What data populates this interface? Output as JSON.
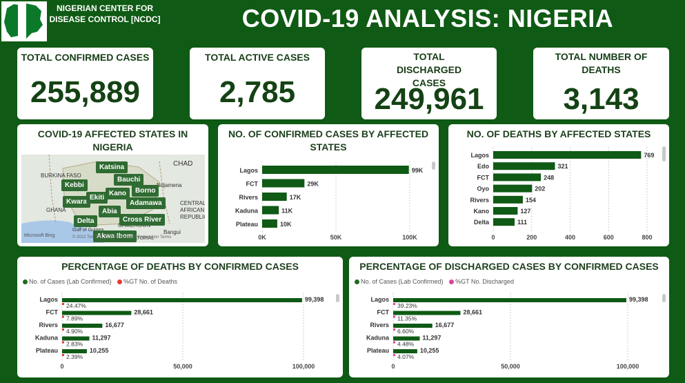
{
  "header": {
    "org_name": "NIGERIAN CENTER FOR DISEASE CONTROL [NCDC]",
    "title": "COVID-19 ANALYSIS: NIGERIA",
    "flag_colors": [
      "#008751",
      "#ffffff",
      "#008751"
    ]
  },
  "kpis": [
    {
      "label": "TOTAL CONFIRMED CASES",
      "value": "255,889"
    },
    {
      "label": "TOTAL ACTIVE CASES",
      "value": "2,785"
    },
    {
      "label": "TOTAL DISCHARGED CASES",
      "value": "249,961"
    },
    {
      "label": "TOTAL NUMBER OF DEATHS",
      "value": "3,143"
    }
  ],
  "map": {
    "title": "COVID-19 AFFECTED STATES IN NIGERIA",
    "pins": [
      "Katsina",
      "Bauchi",
      "Kebbi",
      "Borno",
      "Kano",
      "Kwara",
      "Ekiti",
      "Adamawa",
      "Abia",
      "Delta",
      "Cross River",
      "Akwa Ibom"
    ],
    "labels": [
      "BURKINA FASO",
      "CHAD",
      "GHANA",
      "CAMEROON",
      "CENTRAL AFRICAN REPUBLIC",
      "Bangui",
      "Gulf of Guinea",
      "Ndjamena",
      "EQUATORIAL"
    ],
    "attribution": "© 2022 TomTom, © 2022 Microsoft Corporation Terms",
    "brand": "Microsoft Bing"
  },
  "chart_data": [
    {
      "type": "bar",
      "title": "NO. OF CONFIRMED CASES BY AFFECTED STATES",
      "categories": [
        "Lagos",
        "FCT",
        "Rivers",
        "Kaduna",
        "Plateau"
      ],
      "values": [
        99398,
        28661,
        16677,
        11297,
        10255
      ],
      "data_labels": [
        "99K",
        "29K",
        "17K",
        "11K",
        "10K"
      ],
      "ticks": [
        "0K",
        "50K",
        "100K"
      ],
      "xlim": [
        0,
        100000
      ],
      "color": "#0f5a14"
    },
    {
      "type": "bar",
      "title": "NO. OF DEATHS BY AFFECTED STATES",
      "categories": [
        "Lagos",
        "Edo",
        "FCT",
        "Oyo",
        "Rivers",
        "Kano",
        "Delta"
      ],
      "values": [
        769,
        321,
        248,
        202,
        154,
        127,
        111
      ],
      "data_labels": [
        "769",
        "321",
        "248",
        "202",
        "154",
        "127",
        "111"
      ],
      "ticks": [
        "0",
        "200",
        "400",
        "600",
        "800"
      ],
      "xlim": [
        0,
        800
      ],
      "color": "#0f5a14"
    },
    {
      "type": "bar",
      "title": "PERCENTAGE OF DEATHS BY CONFIRMED CASES",
      "legend": [
        "No. of Cases (Lab Confirmed)",
        "%GT No. of Deaths"
      ],
      "legend_colors": [
        "#1f6b1f",
        "#e53935"
      ],
      "categories": [
        "Lagos",
        "FCT",
        "Rivers",
        "Kaduna",
        "Plateau"
      ],
      "values": [
        99398,
        28661,
        16677,
        11297,
        10255
      ],
      "data_labels": [
        "99,398",
        "28,661",
        "16,677",
        "11,297",
        "10,255"
      ],
      "pct_labels": [
        "24.47%",
        "7.89%",
        "4.90%",
        "2.83%",
        "2.39%"
      ],
      "pct_values": [
        24.47,
        7.89,
        4.9,
        2.83,
        2.39
      ],
      "ticks": [
        "0",
        "50,000",
        "100,000"
      ],
      "xlim": [
        0,
        100000
      ],
      "color": "#0f5a14"
    },
    {
      "type": "bar",
      "title": "PERCENTAGE OF DISCHARGED CASES BY CONFIRMED CASES",
      "legend": [
        "No. of Cases (Lab Confirmed)",
        "%GT No. Discharged"
      ],
      "legend_colors": [
        "#1f6b1f",
        "#e040a0"
      ],
      "categories": [
        "Lagos",
        "FCT",
        "Rivers",
        "Kaduna",
        "Plateau"
      ],
      "values": [
        99398,
        28661,
        16677,
        11297,
        10255
      ],
      "data_labels": [
        "99,398",
        "28,661",
        "16,677",
        "11,297",
        "10,255"
      ],
      "pct_labels": [
        "39.23%",
        "11.35%",
        "6.60%",
        "4.48%",
        "4.07%"
      ],
      "pct_values": [
        39.23,
        11.35,
        6.6,
        4.48,
        4.07
      ],
      "ticks": [
        "0",
        "50,000",
        "100,000"
      ],
      "xlim": [
        0,
        100000
      ],
      "color": "#0f5a14"
    }
  ]
}
